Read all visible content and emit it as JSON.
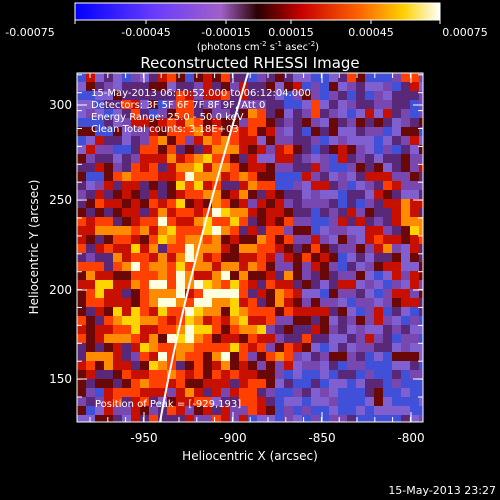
{
  "colorbar": {
    "ticks": [
      "-0.00075",
      "-0.00045",
      "-0.00015",
      "0.00015",
      "0.00045",
      "0.00075"
    ],
    "unit_prefix": "(photons cm",
    "unit_exp1": "-2",
    "unit_mid": " s",
    "unit_exp2": "-1",
    "unit_mid2": " asec",
    "unit_exp3": "-2",
    "unit_suffix": ")"
  },
  "title": "Reconstructed RHESSI Image",
  "info": {
    "time_range": "15-May-2013 06:10:52.000 to 06:12:04.000",
    "detectors": "Detectors: 3F 5F 6F 7F 8F 9F, Att 0",
    "energy": "Energy Range: 25.0 - 50.0 keV",
    "clean": "Clean     Total counts: 3.18E+03"
  },
  "peak": "Position of Peak = [-929,193]",
  "x_axis": {
    "label": "Heliocentric X (arcsec)",
    "ticks": [
      "-950",
      "-900",
      "-850",
      "-800"
    ]
  },
  "y_axis": {
    "label": "Heliocentric Y (arcsec)",
    "ticks": [
      "150",
      "200",
      "250",
      "300"
    ]
  },
  "timestamp": "15-May-2013 23:27"
}
